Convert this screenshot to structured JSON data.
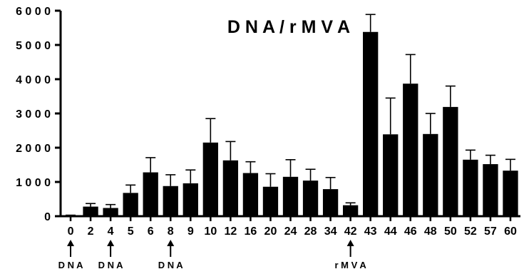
{
  "chart_data": {
    "type": "bar",
    "title": "D N A / r M V A",
    "xlabel": "",
    "ylabel": "",
    "ylim": [
      0,
      6000
    ],
    "yticks": [
      0,
      1000,
      2000,
      3000,
      4000,
      5000,
      6000
    ],
    "ytick_labels": [
      "0",
      "1 0 0 0",
      "2 0 0 0",
      "3 0 0 0",
      "4 0 0 0",
      "5 0 0 0",
      "6 0 0 0"
    ],
    "categories": [
      "0",
      "2",
      "4",
      "5",
      "6",
      "8",
      "9",
      "10",
      "12",
      "16",
      "20",
      "24",
      "28",
      "34",
      "42",
      "43",
      "44",
      "46",
      "48",
      "50",
      "52",
      "57",
      "60"
    ],
    "values": [
      20,
      280,
      240,
      680,
      1280,
      880,
      960,
      2150,
      1630,
      1260,
      860,
      1150,
      1040,
      790,
      320,
      5380,
      2390,
      3870,
      2400,
      3190,
      1650,
      1520,
      1330
    ],
    "error_upper": [
      10,
      90,
      100,
      230,
      430,
      330,
      390,
      700,
      550,
      330,
      380,
      500,
      330,
      340,
      70,
      510,
      1060,
      850,
      600,
      610,
      280,
      260,
      330
    ],
    "color": "#000000",
    "grid": false,
    "annotations": [
      {
        "category": "0",
        "label": "D N A"
      },
      {
        "category": "4",
        "label": "D N A"
      },
      {
        "category": "8",
        "label": "D N A"
      },
      {
        "category": "42",
        "label": "r M V A"
      }
    ]
  }
}
